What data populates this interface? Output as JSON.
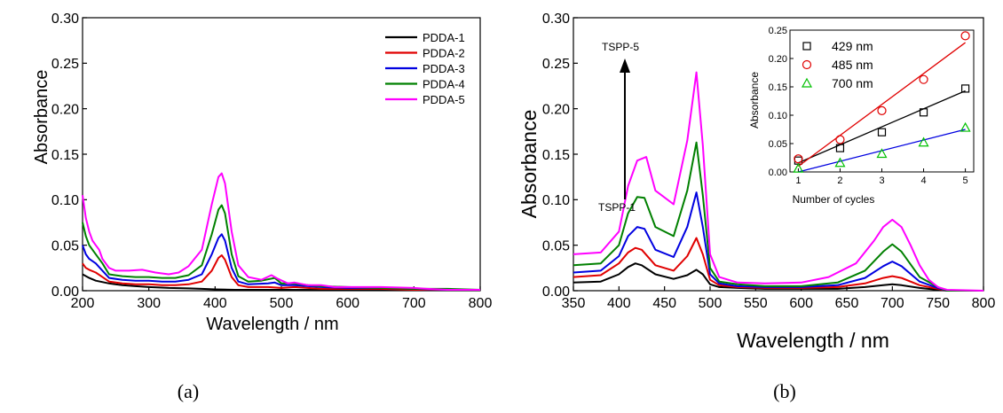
{
  "chart_data": [
    {
      "panel_label": "(a)",
      "type": "line",
      "xlabel": "Wavelength / nm",
      "ylabel": "Absorbance",
      "xlim": [
        200,
        800
      ],
      "ylim": [
        0,
        0.3
      ],
      "xticks": [
        200,
        300,
        400,
        500,
        600,
        700,
        800
      ],
      "yticks": [
        0.0,
        0.05,
        0.1,
        0.15,
        0.2,
        0.25,
        0.3
      ],
      "legend_position": "top-right",
      "series": [
        {
          "name": "PDDA-1",
          "color": "#000000",
          "x": [
            200,
            210,
            220,
            240,
            260,
            280,
            300,
            330,
            360,
            380,
            400,
            430,
            460,
            500,
            600,
            700,
            800
          ],
          "y": [
            0.018,
            0.014,
            0.011,
            0.008,
            0.006,
            0.005,
            0.004,
            0.003,
            0.0025,
            0.002,
            0.0015,
            0.001,
            0.001,
            0.001,
            0.0008,
            0.0005,
            0.0005
          ]
        },
        {
          "name": "PDDA-2",
          "color": "#e00000",
          "x": [
            200,
            205,
            210,
            220,
            230,
            240,
            260,
            280,
            300,
            320,
            340,
            360,
            380,
            395,
            405,
            410,
            415,
            425,
            435,
            450,
            480,
            500,
            520,
            540,
            560,
            600,
            650,
            700,
            750,
            800
          ],
          "y": [
            0.03,
            0.025,
            0.023,
            0.02,
            0.015,
            0.01,
            0.008,
            0.007,
            0.007,
            0.006,
            0.006,
            0.007,
            0.01,
            0.022,
            0.036,
            0.039,
            0.034,
            0.015,
            0.006,
            0.004,
            0.004,
            0.003,
            0.004,
            0.003,
            0.002,
            0.002,
            0.002,
            0.001,
            0.001,
            0.001
          ]
        },
        {
          "name": "PDDA-3",
          "color": "#0000e0",
          "x": [
            200,
            205,
            210,
            220,
            230,
            240,
            260,
            280,
            300,
            320,
            340,
            360,
            380,
            395,
            405,
            410,
            415,
            425,
            435,
            450,
            480,
            490,
            500,
            520,
            540,
            560,
            600,
            650,
            700,
            750,
            800
          ],
          "y": [
            0.05,
            0.04,
            0.035,
            0.03,
            0.022,
            0.014,
            0.012,
            0.011,
            0.011,
            0.01,
            0.01,
            0.012,
            0.018,
            0.04,
            0.058,
            0.062,
            0.055,
            0.025,
            0.01,
            0.007,
            0.008,
            0.009,
            0.006,
            0.006,
            0.005,
            0.004,
            0.003,
            0.003,
            0.002,
            0.001,
            0.001
          ]
        },
        {
          "name": "PDDA-4",
          "color": "#008000",
          "x": [
            200,
            205,
            210,
            220,
            230,
            240,
            260,
            280,
            300,
            320,
            340,
            360,
            380,
            395,
            405,
            410,
            415,
            425,
            435,
            450,
            470,
            490,
            500,
            520,
            540,
            560,
            600,
            650,
            700,
            750,
            800
          ],
          "y": [
            0.075,
            0.06,
            0.05,
            0.04,
            0.03,
            0.018,
            0.016,
            0.015,
            0.015,
            0.014,
            0.014,
            0.017,
            0.028,
            0.062,
            0.089,
            0.094,
            0.085,
            0.04,
            0.016,
            0.01,
            0.011,
            0.014,
            0.008,
            0.008,
            0.006,
            0.005,
            0.004,
            0.003,
            0.002,
            0.002,
            0.001
          ]
        },
        {
          "name": "PDDA-5",
          "color": "#ff00ff",
          "x": [
            200,
            205,
            210,
            215,
            220,
            225,
            230,
            240,
            250,
            270,
            290,
            310,
            330,
            345,
            360,
            380,
            395,
            405,
            410,
            415,
            425,
            435,
            450,
            470,
            485,
            495,
            510,
            520,
            540,
            560,
            580,
            600,
            650,
            700,
            720,
            750,
            800
          ],
          "y": [
            0.105,
            0.08,
            0.065,
            0.055,
            0.05,
            0.045,
            0.035,
            0.025,
            0.022,
            0.022,
            0.023,
            0.02,
            0.018,
            0.02,
            0.027,
            0.045,
            0.095,
            0.125,
            0.129,
            0.118,
            0.065,
            0.028,
            0.015,
            0.012,
            0.017,
            0.013,
            0.008,
            0.009,
            0.006,
            0.006,
            0.004,
            0.004,
            0.004,
            0.003,
            0.002,
            0.001,
            0.001
          ]
        }
      ]
    },
    {
      "panel_label": "(b)",
      "type": "line",
      "xlabel": "Wavelength / nm",
      "ylabel": "Absorbance",
      "xlim": [
        350,
        800
      ],
      "ylim": [
        0,
        0.3
      ],
      "xticks": [
        350,
        400,
        450,
        500,
        550,
        600,
        650,
        700,
        750,
        800
      ],
      "yticks": [
        0.0,
        0.05,
        0.1,
        0.15,
        0.2,
        0.25,
        0.3
      ],
      "annotations": {
        "top": "TSPP-5",
        "bottom": "TSPP-1"
      },
      "series": [
        {
          "color": "#000000",
          "x": [
            350,
            380,
            400,
            410,
            418,
            425,
            440,
            460,
            475,
            485,
            492,
            500,
            510,
            530,
            560,
            600,
            640,
            670,
            690,
            700,
            710,
            730,
            750,
            760,
            800
          ],
          "y": [
            0.009,
            0.01,
            0.018,
            0.026,
            0.03,
            0.028,
            0.018,
            0.013,
            0.017,
            0.023,
            0.018,
            0.007,
            0.004,
            0.003,
            0.002,
            0.002,
            0.002,
            0.004,
            0.006,
            0.007,
            0.006,
            0.003,
            0.001,
            0.0,
            0.0
          ]
        },
        {
          "color": "#e00000",
          "x": [
            350,
            380,
            400,
            410,
            418,
            425,
            440,
            460,
            475,
            485,
            492,
            500,
            510,
            530,
            560,
            600,
            640,
            670,
            690,
            700,
            710,
            730,
            750,
            760,
            800
          ],
          "y": [
            0.015,
            0.017,
            0.03,
            0.042,
            0.047,
            0.045,
            0.028,
            0.022,
            0.038,
            0.058,
            0.04,
            0.012,
            0.006,
            0.004,
            0.003,
            0.003,
            0.004,
            0.008,
            0.014,
            0.016,
            0.014,
            0.006,
            0.002,
            0.0,
            0.0
          ]
        },
        {
          "color": "#0000e0",
          "x": [
            350,
            380,
            400,
            410,
            420,
            428,
            440,
            460,
            475,
            485,
            492,
            500,
            510,
            530,
            560,
            600,
            640,
            670,
            690,
            700,
            710,
            730,
            750,
            760,
            800
          ],
          "y": [
            0.02,
            0.022,
            0.038,
            0.06,
            0.07,
            0.068,
            0.045,
            0.037,
            0.07,
            0.108,
            0.07,
            0.018,
            0.008,
            0.005,
            0.004,
            0.004,
            0.006,
            0.014,
            0.027,
            0.032,
            0.027,
            0.01,
            0.003,
            0.0,
            0.0
          ]
        },
        {
          "color": "#008000",
          "x": [
            350,
            380,
            400,
            410,
            420,
            428,
            440,
            460,
            475,
            485,
            492,
            500,
            510,
            530,
            560,
            600,
            640,
            670,
            690,
            700,
            710,
            730,
            750,
            760,
            800
          ],
          "y": [
            0.028,
            0.03,
            0.05,
            0.085,
            0.103,
            0.102,
            0.07,
            0.06,
            0.11,
            0.163,
            0.105,
            0.025,
            0.01,
            0.007,
            0.005,
            0.005,
            0.009,
            0.022,
            0.043,
            0.051,
            0.043,
            0.015,
            0.004,
            0.0,
            0.0
          ]
        },
        {
          "color": "#ff00ff",
          "x": [
            350,
            380,
            400,
            410,
            420,
            430,
            440,
            460,
            475,
            485,
            492,
            500,
            510,
            530,
            560,
            600,
            630,
            660,
            680,
            690,
            700,
            710,
            720,
            730,
            740,
            750,
            760,
            800
          ],
          "y": [
            0.04,
            0.042,
            0.065,
            0.115,
            0.143,
            0.147,
            0.11,
            0.095,
            0.165,
            0.24,
            0.16,
            0.04,
            0.015,
            0.009,
            0.008,
            0.009,
            0.015,
            0.03,
            0.055,
            0.07,
            0.078,
            0.07,
            0.05,
            0.028,
            0.012,
            0.004,
            0.001,
            0.0
          ]
        }
      ],
      "inset": {
        "type": "scatter",
        "xlabel": "Number of cycles",
        "ylabel": "Absorbance",
        "xlim": [
          0.8,
          5.2
        ],
        "ylim": [
          0,
          0.25
        ],
        "xticks": [
          1,
          2,
          3,
          4,
          5
        ],
        "yticks": [
          "0.00",
          "0.05",
          "0.10",
          "0.15",
          "0.20",
          "0.25"
        ],
        "legend_position": "top-left",
        "series": [
          {
            "name": "429 nm",
            "color": "#000000",
            "marker": "square",
            "x": [
              1,
              2,
              3,
              4,
              5
            ],
            "y": [
              0.02,
              0.042,
              0.07,
              0.105,
              0.147
            ],
            "fit": [
              [
                1,
                0.016
              ],
              [
                5,
                0.143
              ]
            ]
          },
          {
            "name": "485 nm",
            "color": "#e00000",
            "marker": "circle",
            "x": [
              1,
              2,
              3,
              4,
              5
            ],
            "y": [
              0.023,
              0.057,
              0.108,
              0.163,
              0.24
            ],
            "fit": [
              [
                1,
                0.01
              ],
              [
                5,
                0.228
              ]
            ]
          },
          {
            "name": "700 nm",
            "color": "#00c000",
            "marker": "triangle",
            "x": [
              1,
              2,
              3,
              4,
              5
            ],
            "y": [
              0.006,
              0.016,
              0.032,
              0.052,
              0.078
            ],
            "fit": [
              [
                1,
                0.0
              ],
              [
                5,
                0.075
              ]
            ]
          }
        ]
      }
    }
  ]
}
